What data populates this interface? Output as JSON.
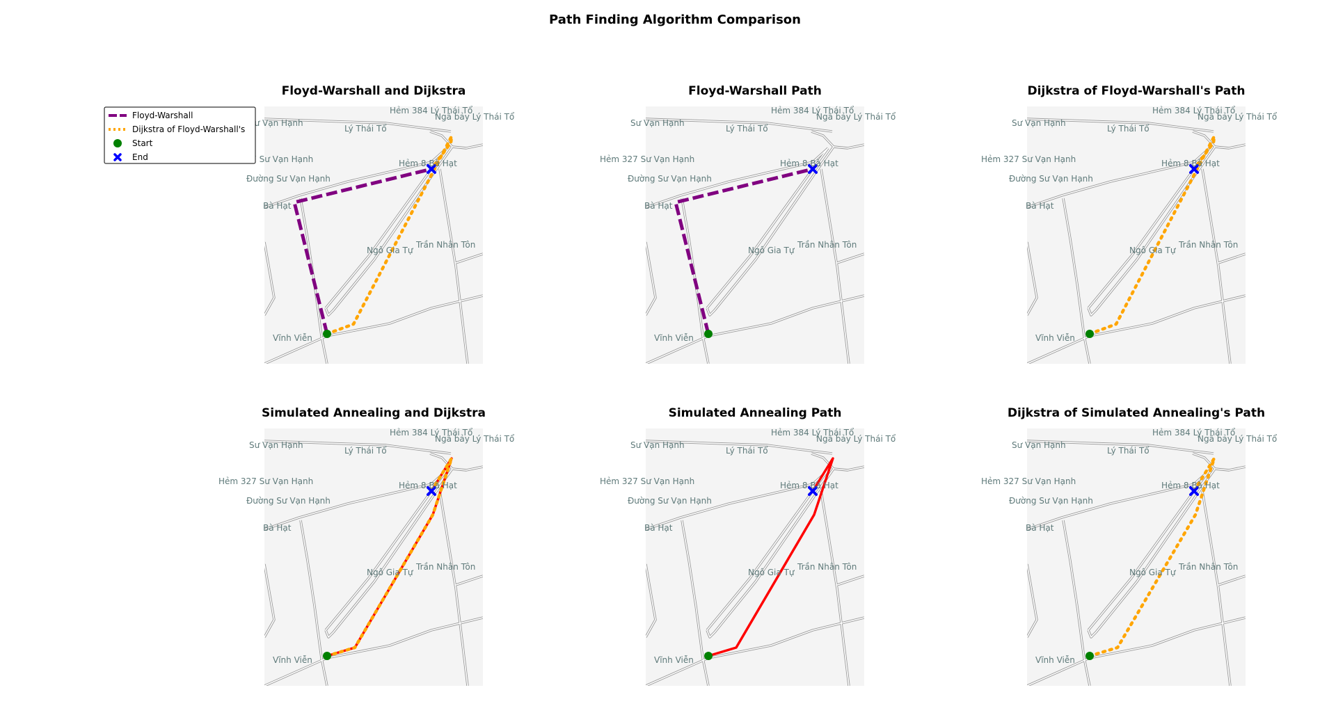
{
  "figure_title": "Path Finding Algorithm Comparison",
  "legend": [
    {
      "label": "Floyd-Warshall",
      "style": "dashed",
      "color": "#800080"
    },
    {
      "label": "Dijkstra of Floyd-Warshall's",
      "style": "dotted",
      "color": "#ffa500"
    },
    {
      "label": "Start",
      "marker": "circle",
      "color": "#008000"
    },
    {
      "label": "End",
      "marker": "x",
      "color": "#0000ff"
    }
  ],
  "colors": {
    "map_bg": "#f4f4f4",
    "road": "#999999",
    "road_fill": "#ffffff",
    "label": "#5f7a7a",
    "floyd": "#800080",
    "dijkstra": "#ffa500",
    "annealing": "#ff0000",
    "start": "#008000",
    "end": "#0000ff"
  },
  "street_labels": [
    "Hẻm 384 Lý Thái Tổ",
    "Ngã bảy Lý Thái Tổ",
    "Sư Vạn Hạnh",
    "Lý Thái Tổ",
    "Hẻm 327 Sư Vạn Hạnh",
    "Hẻm 8 Bà Hạt",
    "Đường Sư Vạn Hạnh",
    "Bà Hạt",
    "Trần Nhân Tôn",
    "Ngô Gia Tự",
    "Vĩnh Viễn"
  ],
  "panels": [
    {
      "title": "Floyd-Warshall and Dijkstra",
      "end": "hat",
      "paths": [
        "floyd",
        "dijkstra_fw"
      ]
    },
    {
      "title": "Floyd-Warshall Path",
      "end": "hat",
      "paths": [
        "floyd"
      ]
    },
    {
      "title": "Dijkstra of Floyd-Warshall's Path",
      "end": "hat",
      "paths": [
        "dijkstra_fw"
      ]
    },
    {
      "title": "Simulated Annealing and Dijkstra",
      "end": "hat",
      "paths": [
        "annealing",
        "dijkstra_sa"
      ]
    },
    {
      "title": "Simulated Annealing Path",
      "end": "hat",
      "paths": [
        "annealing"
      ]
    },
    {
      "title": "Dijkstra of Simulated Annealing's Path",
      "end": "hat",
      "paths": [
        "dijkstra_sa"
      ]
    }
  ]
}
